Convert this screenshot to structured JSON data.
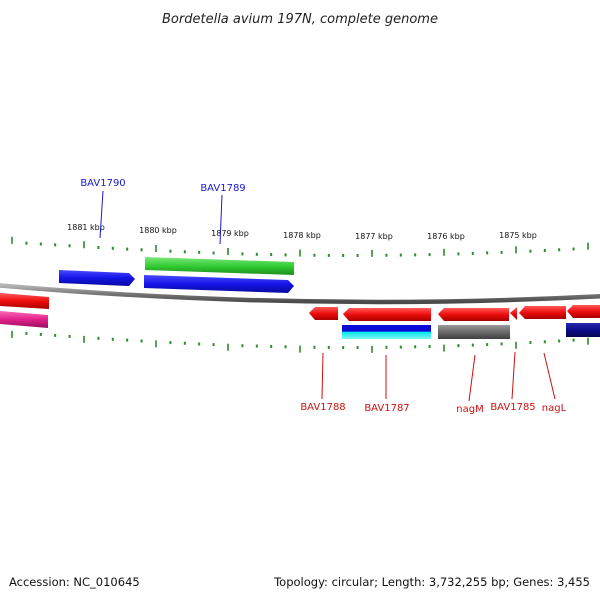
{
  "title": "Bordetella avium 197N, complete genome",
  "footer": {
    "accession": "Accession: NC_010645",
    "summary": "Topology: circular; Length: 3,732,255 bp; Genes: 3,455"
  },
  "colors": {
    "backbone": "#8a8a8a",
    "tick": "#2e8b2e",
    "label_forward": "#1a1acc",
    "label_reverse": "#cc1111",
    "blue": "#1414e6",
    "green": "#33cc33",
    "red": "#ee0d0d",
    "magenta": "#e0208a",
    "cyan": "#00dddd",
    "gray": "#6a6a6a",
    "navy": "#0b0b8a"
  },
  "ruler_labels": [
    "1881 kbp",
    "1880 kbp",
    "1879 kbp",
    "1878 kbp",
    "1877 kbp",
    "1876 kbp",
    "1875 kbp"
  ],
  "gene_labels": [
    {
      "text": "BAV1790",
      "strand": "forward"
    },
    {
      "text": "BAV1789",
      "strand": "forward"
    },
    {
      "text": "BAV1788",
      "strand": "reverse"
    },
    {
      "text": "BAV1787",
      "strand": "reverse"
    },
    {
      "text": "nagM",
      "strand": "reverse"
    },
    {
      "text": "BAV1785",
      "strand": "reverse"
    },
    {
      "text": "nagL",
      "strand": "reverse"
    }
  ]
}
